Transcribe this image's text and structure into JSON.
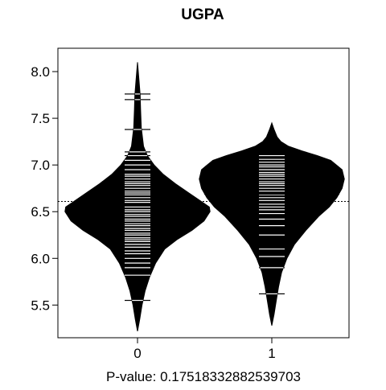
{
  "chart_data": {
    "type": "beanplot",
    "title": "UGPA",
    "xlabel": "P-value: 0.17518332882539703",
    "ylabel": "",
    "ylim": [
      5.15,
      8.25
    ],
    "yticks": [
      "5.5",
      "6.0",
      "6.5",
      "7.0",
      "7.5",
      "8.0"
    ],
    "ytick_values": [
      5.5,
      6.0,
      6.5,
      7.0,
      7.5,
      8.0
    ],
    "categories": [
      "0",
      "1"
    ],
    "overall_mean": 6.61,
    "grid": false,
    "legend": "none",
    "colors": {
      "bean": "#000000",
      "rug": "#ffffff",
      "axis": "#000000"
    },
    "series": [
      {
        "category": "0",
        "mean": 6.57,
        "density": [
          [
            5.22,
            0.0
          ],
          [
            5.35,
            0.03
          ],
          [
            5.5,
            0.06
          ],
          [
            5.65,
            0.1
          ],
          [
            5.8,
            0.16
          ],
          [
            5.95,
            0.24
          ],
          [
            6.1,
            0.36
          ],
          [
            6.2,
            0.52
          ],
          [
            6.3,
            0.72
          ],
          [
            6.4,
            0.88
          ],
          [
            6.5,
            0.96
          ],
          [
            6.55,
            0.95
          ],
          [
            6.6,
            0.86
          ],
          [
            6.7,
            0.68
          ],
          [
            6.8,
            0.5
          ],
          [
            6.9,
            0.34
          ],
          [
            7.0,
            0.22
          ],
          [
            7.1,
            0.13
          ],
          [
            7.2,
            0.08
          ],
          [
            7.4,
            0.05
          ],
          [
            7.6,
            0.04
          ],
          [
            7.75,
            0.035
          ],
          [
            7.9,
            0.02
          ],
          [
            8.1,
            0.0
          ]
        ],
        "rug": [
          5.55,
          5.82,
          5.9,
          5.95,
          6.0,
          6.05,
          6.08,
          6.12,
          6.15,
          6.18,
          6.2,
          6.22,
          6.25,
          6.27,
          6.3,
          6.32,
          6.35,
          6.37,
          6.4,
          6.42,
          6.45,
          6.47,
          6.5,
          6.52,
          6.55,
          6.57,
          6.6,
          6.62,
          6.65,
          6.68,
          6.7,
          6.72,
          6.75,
          6.78,
          6.8,
          6.82,
          6.85,
          6.88,
          6.9,
          6.95,
          7.0,
          7.05,
          7.1,
          7.14,
          7.38,
          7.7,
          7.76
        ]
      },
      {
        "category": "1",
        "mean": 6.69,
        "density": [
          [
            5.28,
            0.0
          ],
          [
            5.4,
            0.03
          ],
          [
            5.55,
            0.06
          ],
          [
            5.7,
            0.09
          ],
          [
            5.85,
            0.13
          ],
          [
            6.0,
            0.2
          ],
          [
            6.15,
            0.3
          ],
          [
            6.3,
            0.45
          ],
          [
            6.45,
            0.62
          ],
          [
            6.55,
            0.76
          ],
          [
            6.65,
            0.86
          ],
          [
            6.75,
            0.93
          ],
          [
            6.85,
            0.96
          ],
          [
            6.95,
            0.93
          ],
          [
            7.05,
            0.78
          ],
          [
            7.1,
            0.6
          ],
          [
            7.15,
            0.4
          ],
          [
            7.2,
            0.22
          ],
          [
            7.25,
            0.12
          ],
          [
            7.3,
            0.07
          ],
          [
            7.38,
            0.03
          ],
          [
            7.45,
            0.0
          ]
        ],
        "rug": [
          5.62,
          5.9,
          6.02,
          6.1,
          6.25,
          6.35,
          6.42,
          6.48,
          6.52,
          6.55,
          6.58,
          6.62,
          6.65,
          6.68,
          6.72,
          6.75,
          6.78,
          6.8,
          6.82,
          6.85,
          6.88,
          6.9,
          6.92,
          6.95,
          6.98,
          7.0,
          7.03,
          7.06,
          7.1
        ]
      }
    ]
  }
}
